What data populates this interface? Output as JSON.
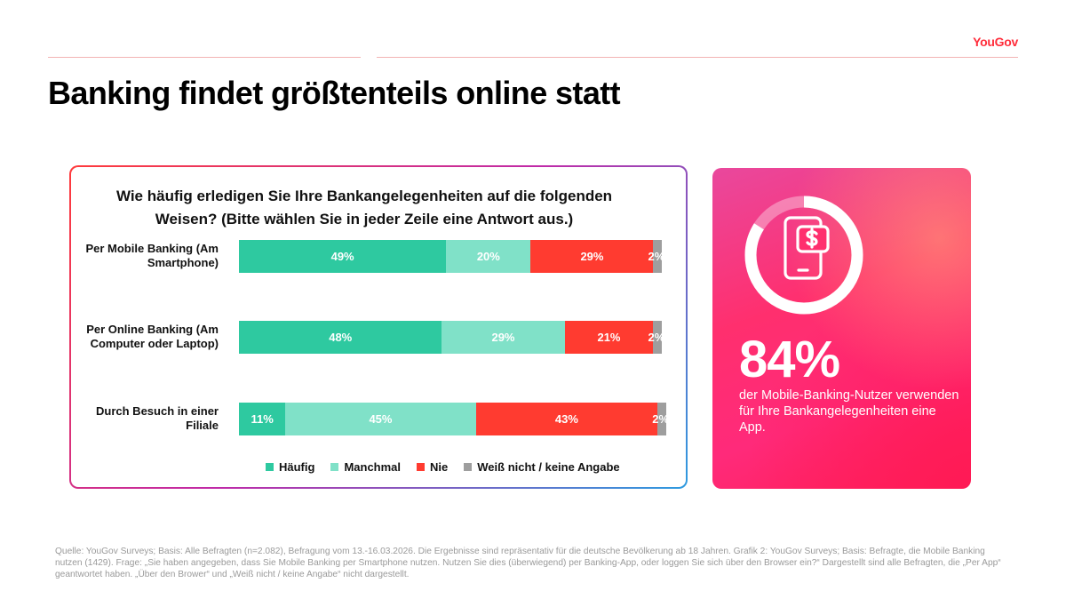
{
  "brand": {
    "logo": "YouGov",
    "accent": "#ff2d3b"
  },
  "page_title": "Banking findet größtenteils online statt",
  "chart_data": {
    "type": "bar",
    "orientation": "horizontal",
    "stacked": true,
    "title": "Wie häufig erledigen Sie Ihre Bankangelegenheiten auf die folgenden Weisen? (Bitte wählen Sie in jeder Zeile eine Antwort aus.)",
    "categories": [
      "Per Mobile Banking (Am Smartphone)",
      "Per Online Banking (Am Computer oder Laptop)",
      "Durch Besuch in einer Filiale"
    ],
    "series": [
      {
        "name": "Häufig",
        "color": "#2ec9a0",
        "values": [
          49,
          48,
          11
        ],
        "labels": [
          "49%",
          "48%",
          "11%"
        ]
      },
      {
        "name": "Manchmal",
        "color": "#80e1c8",
        "values": [
          20,
          29,
          45
        ],
        "labels": [
          "20%",
          "29%",
          "45%"
        ]
      },
      {
        "name": "Nie",
        "color": "#ff3b30",
        "values": [
          29,
          21,
          43
        ],
        "labels": [
          "29%",
          "21%",
          "43%"
        ]
      },
      {
        "name": "Weiß nicht / keine Angabe",
        "color": "#9e9e9e",
        "values": [
          2,
          2,
          2
        ],
        "labels": [
          "2%",
          "2%",
          "2%"
        ]
      }
    ],
    "xlim": [
      0,
      100
    ],
    "legend": "bottom",
    "grid": false
  },
  "promo": {
    "value": 84,
    "big_number": "84%",
    "text": "der Mobile-Banking-Nutzer verwenden für Ihre Bankangelegenheiten eine App.",
    "icon": "smartphone-dollar-icon"
  },
  "source": "Quelle: YouGov Surveys; Basis: Alle Befragten (n=2.082), Befragung vom 13.-16.03.2026. Die Ergebnisse sind repräsentativ für die deutsche Bevölkerung ab 18 Jahren. Grafik 2: YouGov Surveys; Basis: Befragte, die Mobile Banking nutzen (1429). Frage: „Sie haben angegeben, dass Sie Mobile Banking per Smartphone nutzen. Nutzen Sie dies (überwiegend) per Banking-App, oder loggen Sie sich über den Browser ein?“ Dargestellt sind alle Befragten, die „Per App“ geantwortet haben. „Über den Brower“ und „Weiß nicht / keine Angabe“ nicht dargestellt."
}
